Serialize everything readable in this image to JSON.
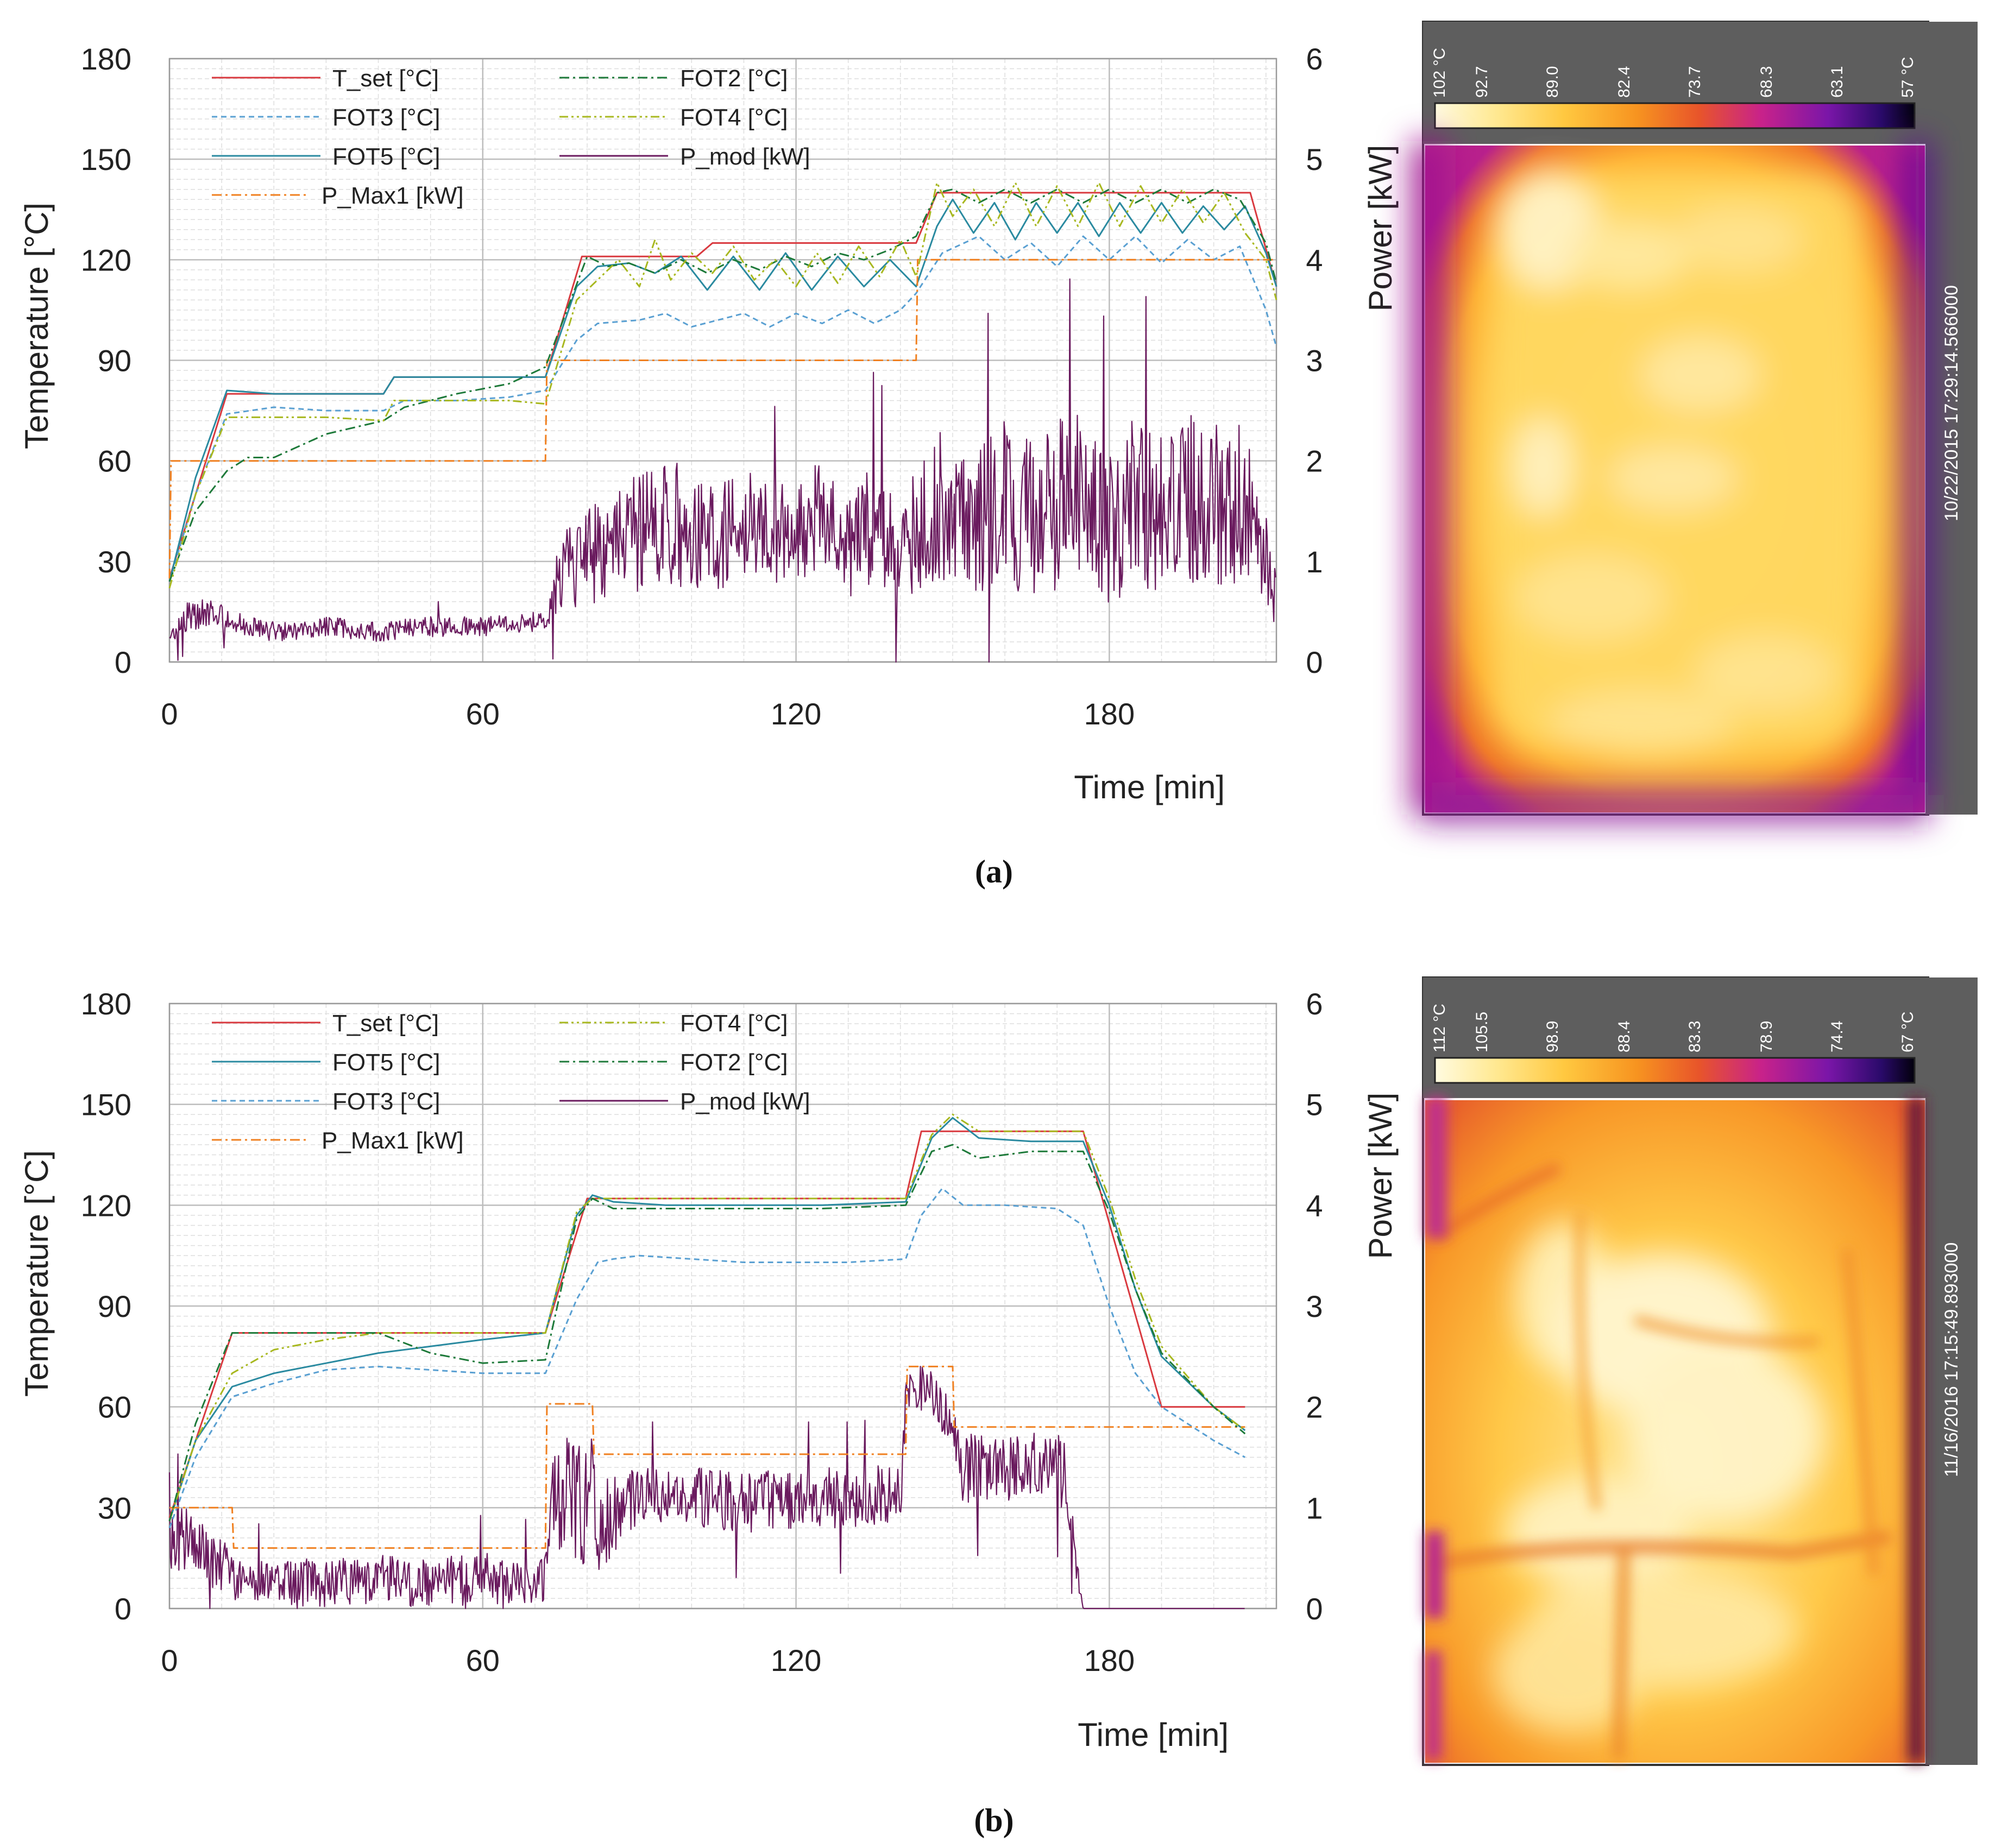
{
  "colors": {
    "t_set": "#d9393f",
    "fot3": "#5aa0d2",
    "fot5": "#2a8aa0",
    "p_max1": "#f08020",
    "fot2": "#1e7a3a",
    "fot4": "#a8b820",
    "p_mod": "#6a1a5e",
    "grid_major": "#bdbdbd",
    "grid_minor": "#dedede",
    "side_bar": "#5e5e5e",
    "thermal": [
      "#fffde8",
      "#fff7a8",
      "#ffe05a",
      "#ffb428",
      "#f57f17",
      "#e5452a",
      "#c5208a",
      "#8a1aa8",
      "#3a0a78",
      "#050014"
    ]
  },
  "chart_data": [
    {
      "type": "line",
      "panel_caption": "(a)",
      "xlabel": "Time [min]",
      "ylabel": "Temperature [°C]",
      "y2label": "Power [kW]",
      "xlim": [
        0,
        212
      ],
      "ylim": [
        0,
        180
      ],
      "y2lim": [
        0,
        6
      ],
      "xticks": [
        "0",
        "60",
        "120",
        "180"
      ],
      "xtick_values": [
        0,
        60,
        120,
        180
      ],
      "yticks": [
        "0",
        "30",
        "60",
        "90",
        "120",
        "150",
        "180"
      ],
      "y2ticks": [
        "0",
        "1",
        "2",
        "3",
        "4",
        "5",
        "6"
      ],
      "grid": true,
      "legend": [
        "T_set   [°C]",
        "FOT2   [°C]",
        "FOT3   [°C]",
        "FOT4   [°C]",
        "FOT5 [°C]",
        "P_mod [kW]",
        "P_Max1 [kW]"
      ],
      "series": [
        {
          "name": "T_set [°C]",
          "key": "t_set",
          "axis": "y",
          "style": "solid",
          "x": [
            0,
            11,
            41,
            43,
            72,
            79,
            101,
            104,
            143,
            147,
            207,
            212
          ],
          "y": [
            25,
            80,
            80,
            85,
            85,
            121,
            121,
            125,
            125,
            140,
            140,
            112
          ]
        },
        {
          "name": "FOT3 [°C]",
          "key": "fot3",
          "axis": "y",
          "style": "dash",
          "x": [
            0,
            5,
            11,
            20,
            30,
            41,
            45,
            55,
            65,
            72,
            78,
            82,
            90,
            95,
            100,
            110,
            115,
            120,
            125,
            130,
            135,
            140,
            143,
            148,
            155,
            160,
            165,
            170,
            175,
            180,
            185,
            190,
            195,
            200,
            205,
            210,
            212
          ],
          "y": [
            24,
            50,
            74,
            76,
            75,
            75,
            78,
            78,
            79,
            81,
            96,
            101,
            102,
            104,
            100,
            104,
            100,
            104,
            101,
            105,
            101,
            105,
            110,
            122,
            127,
            120,
            125,
            118,
            127,
            120,
            127,
            119,
            126,
            120,
            124,
            105,
            94
          ]
        },
        {
          "name": "FOT5 [°C]",
          "key": "fot5",
          "axis": "y",
          "style": "solid",
          "x": [
            0,
            5,
            11,
            20,
            30,
            41,
            43,
            55,
            65,
            72,
            78,
            82,
            88,
            93,
            98,
            103,
            108,
            113,
            118,
            123,
            128,
            133,
            138,
            143,
            147,
            150,
            154,
            158,
            162,
            166,
            170,
            174,
            178,
            182,
            186,
            190,
            194,
            198,
            202,
            206,
            210,
            212
          ],
          "y": [
            24,
            55,
            81,
            80,
            80,
            80,
            85,
            85,
            85,
            85,
            112,
            118,
            119,
            116,
            121,
            111,
            121,
            111,
            122,
            111,
            121,
            112,
            120,
            112,
            130,
            138,
            128,
            137,
            126,
            137,
            128,
            137,
            127,
            137,
            128,
            137,
            128,
            136,
            129,
            136,
            122,
            112
          ]
        },
        {
          "name": "P_Max1 [kW]",
          "key": "p_max1",
          "axis": "y2",
          "style": "dashdot",
          "x": [
            0,
            0.3,
            72,
            72.3,
            143,
            143.3,
            212
          ],
          "y": [
            0.83,
            2,
            2,
            3,
            3,
            4,
            4
          ]
        },
        {
          "name": "FOT2 [°C]",
          "key": "fot2",
          "axis": "y",
          "style": "dashdot",
          "x": [
            0,
            5,
            11,
            15,
            20,
            30,
            41,
            45,
            55,
            65,
            72,
            80,
            84,
            88,
            93,
            98,
            103,
            108,
            113,
            118,
            123,
            128,
            133,
            138,
            143,
            147,
            150,
            155,
            160,
            165,
            170,
            175,
            180,
            185,
            190,
            195,
            200,
            205,
            210,
            212
          ],
          "y": [
            24,
            45,
            57,
            61,
            61,
            68,
            72,
            76,
            80,
            83,
            88,
            121,
            118,
            119,
            116,
            120,
            116,
            120,
            117,
            121,
            118,
            122,
            120,
            123,
            127,
            140,
            141,
            137,
            141,
            137,
            141,
            137,
            141,
            137,
            141,
            137,
            141,
            138,
            125,
            113
          ]
        },
        {
          "name": "FOT4 [°C]",
          "key": "fot4",
          "axis": "y",
          "style": "dashdotdot",
          "x": [
            0,
            5,
            11,
            20,
            30,
            41,
            43,
            55,
            65,
            72,
            78,
            82,
            86,
            90,
            93,
            96,
            100,
            104,
            108,
            112,
            116,
            120,
            124,
            128,
            132,
            136,
            140,
            143,
            147,
            150,
            154,
            158,
            162,
            166,
            170,
            174,
            178,
            182,
            186,
            190,
            194,
            198,
            202,
            206,
            210,
            212
          ],
          "y": [
            22,
            50,
            73,
            73,
            73,
            72,
            78,
            78,
            78,
            77,
            108,
            114,
            120,
            112,
            126,
            114,
            122,
            116,
            124,
            114,
            120,
            112,
            122,
            113,
            124,
            115,
            126,
            115,
            143,
            133,
            141,
            130,
            143,
            130,
            142,
            130,
            143,
            130,
            142,
            131,
            141,
            131,
            140,
            128,
            120,
            108
          ]
        },
        {
          "name": "P_mod [kW]",
          "key": "p_mod",
          "axis": "y2",
          "style": "dot",
          "noisy": true,
          "x": [
            0,
            3,
            8,
            12,
            20,
            30,
            40,
            50,
            60,
            70,
            72,
            75,
            80,
            85,
            90,
            95,
            100,
            105,
            110,
            115,
            120,
            125,
            130,
            135,
            140,
            145,
            150,
            155,
            160,
            165,
            170,
            175,
            180,
            185,
            190,
            195,
            200,
            205,
            210,
            212
          ],
          "y": [
            0.2,
            0.45,
            0.5,
            0.4,
            0.3,
            0.35,
            0.3,
            0.35,
            0.35,
            0.4,
            0.4,
            0.9,
            1.05,
            1.15,
            1.3,
            1.35,
            1.4,
            1.2,
            1.45,
            1.25,
            1.35,
            1.45,
            1.1,
            1.4,
            1.0,
            1.55,
            1.6,
            1.45,
            1.6,
            1.4,
            1.55,
            1.7,
            1.3,
            1.6,
            1.5,
            1.7,
            1.55,
            1.6,
            1.2,
            0.5
          ],
          "spread": [
            0.1,
            0.15,
            0.15,
            0.1,
            0.1,
            0.1,
            0.1,
            0.1,
            0.1,
            0.1,
            0.1,
            0.4,
            0.5,
            0.55,
            0.6,
            0.6,
            0.65,
            0.5,
            0.6,
            0.5,
            0.55,
            0.55,
            0.5,
            0.6,
            0.55,
            0.75,
            0.8,
            0.75,
            0.85,
            0.8,
            0.85,
            0.9,
            0.8,
            0.85,
            0.8,
            0.9,
            0.85,
            0.8,
            0.6,
            0.4
          ]
        }
      ]
    },
    {
      "type": "line",
      "panel_caption": "(b)",
      "xlabel": "Time [min]",
      "ylabel": "Temperature [°C]",
      "y2label": "Power [kW]",
      "xlim": [
        0,
        212
      ],
      "ylim": [
        0,
        180
      ],
      "y2lim": [
        0,
        6
      ],
      "xticks": [
        "0",
        "60",
        "120",
        "180"
      ],
      "xtick_values": [
        0,
        60,
        120,
        180
      ],
      "yticks": [
        "0",
        "30",
        "60",
        "90",
        "120",
        "150",
        "180"
      ],
      "y2ticks": [
        "0",
        "1",
        "2",
        "3",
        "4",
        "5",
        "6"
      ],
      "grid": true,
      "legend": [
        "T_set   [°C]",
        "FOT4   [°C]",
        "FOT5   [°C]",
        "FOT2   [°C]",
        "FOT3 [°C]",
        "P_mod [kW]",
        "P_Max1 [kW]"
      ],
      "series": [
        {
          "name": "T_set [°C]",
          "key": "t_set",
          "axis": "y",
          "style": "solid",
          "x": [
            0,
            12,
            72,
            80,
            141,
            144,
            175,
            190,
            206
          ],
          "y": [
            27,
            82,
            82,
            122,
            122,
            142,
            142,
            60,
            60
          ]
        },
        {
          "name": "FOT5 [°C]",
          "key": "fot5",
          "axis": "y",
          "style": "solid",
          "x": [
            0,
            5,
            12,
            20,
            30,
            40,
            50,
            60,
            72,
            78,
            81,
            85,
            95,
            110,
            125,
            141,
            146,
            150,
            155,
            165,
            175,
            180,
            185,
            190,
            200,
            206
          ],
          "y": [
            26,
            50,
            66,
            70,
            73,
            76,
            78,
            80,
            82,
            117,
            123,
            121,
            120,
            120,
            120,
            121,
            140,
            146,
            140,
            139,
            139,
            120,
            95,
            75,
            60,
            53
          ]
        },
        {
          "name": "FOT3 [°C]",
          "key": "fot3",
          "axis": "y",
          "style": "dash",
          "x": [
            0,
            5,
            12,
            20,
            30,
            40,
            50,
            60,
            72,
            78,
            82,
            85,
            90,
            100,
            110,
            120,
            130,
            141,
            144,
            148,
            152,
            160,
            170,
            175,
            180,
            185,
            190,
            200,
            206
          ],
          "y": [
            24,
            45,
            63,
            67,
            71,
            72,
            71,
            70,
            70,
            92,
            103,
            104,
            105,
            104,
            103,
            103,
            103,
            104,
            117,
            125,
            120,
            120,
            119,
            114,
            90,
            70,
            60,
            50,
            45
          ]
        },
        {
          "name": "P_Max1 [kW]",
          "key": "p_max1",
          "axis": "y2",
          "style": "dashdot",
          "x": [
            0,
            12,
            12.3,
            72,
            72.3,
            81,
            81.3,
            141,
            141.3,
            150,
            150.3,
            206
          ],
          "y": [
            1.0,
            1.0,
            0.6,
            0.6,
            2.03,
            2.03,
            1.53,
            1.53,
            2.4,
            2.4,
            1.8,
            1.8
          ]
        },
        {
          "name": "FOT4 [°C]",
          "key": "fot4",
          "axis": "y",
          "style": "dashdotdot",
          "x": [
            0,
            5,
            12,
            20,
            30,
            40,
            50,
            60,
            72,
            78,
            81,
            90,
            110,
            125,
            141,
            146,
            150,
            155,
            165,
            175,
            180,
            185,
            190,
            200,
            206
          ],
          "y": [
            26,
            50,
            70,
            77,
            80,
            82,
            82,
            82,
            82,
            118,
            122,
            122,
            122,
            122,
            122,
            141,
            147,
            142,
            142,
            142,
            122,
            98,
            78,
            60,
            53
          ]
        },
        {
          "name": "FOT2 [°C]",
          "key": "fot2",
          "axis": "y",
          "style": "dashdot",
          "x": [
            0,
            5,
            12,
            20,
            30,
            40,
            50,
            60,
            72,
            78,
            81,
            85,
            95,
            110,
            125,
            141,
            146,
            150,
            155,
            165,
            175,
            180,
            185,
            190,
            200,
            206
          ],
          "y": [
            26,
            55,
            82,
            82,
            82,
            82,
            76,
            73,
            74,
            116,
            122,
            119,
            119,
            119,
            119,
            120,
            136,
            138,
            134,
            136,
            136,
            118,
            95,
            76,
            60,
            52
          ]
        },
        {
          "name": "P_mod [kW]",
          "key": "p_mod",
          "axis": "y2",
          "style": "dot",
          "noisy": true,
          "x": [
            0,
            2,
            6,
            12,
            14,
            20,
            30,
            40,
            50,
            60,
            70,
            72,
            74,
            78,
            81,
            82,
            90,
            100,
            110,
            120,
            130,
            140,
            141,
            144,
            148,
            150,
            152,
            160,
            170,
            172,
            174,
            175,
            180,
            190,
            200,
            206
          ],
          "y": [
            0.6,
            0.7,
            0.55,
            0.4,
            0.25,
            0.3,
            0.25,
            0.3,
            0.25,
            0.3,
            0.25,
            0.3,
            1.2,
            1.0,
            1.1,
            0.8,
            1.1,
            1.1,
            1.05,
            1.1,
            1.1,
            1.15,
            2.1,
            2.2,
            2.0,
            1.8,
            1.4,
            1.4,
            1.4,
            1.3,
            0.3,
            0.0,
            0.0,
            0.0,
            0.0,
            0.0
          ],
          "spread": [
            0.3,
            0.35,
            0.35,
            0.3,
            0.2,
            0.25,
            0.25,
            0.25,
            0.25,
            0.25,
            0.25,
            0.25,
            0.6,
            0.6,
            0.6,
            0.45,
            0.3,
            0.3,
            0.3,
            0.3,
            0.3,
            0.3,
            0.25,
            0.25,
            0.25,
            0.2,
            0.35,
            0.35,
            0.35,
            0.4,
            0.15,
            0.0,
            0.0,
            0.0,
            0.0,
            0.0
          ]
        }
      ]
    }
  ],
  "thermal_images": [
    {
      "scale_labels": [
        "102 °C",
        "92.7",
        "89.0",
        "82.4",
        "73.7",
        "68.3",
        "63.1",
        "57 °C"
      ],
      "timestamp": "10/22/2015 17:29:14.566000"
    },
    {
      "scale_labels": [
        "112 °C",
        "105.5",
        "98.9",
        "88.4",
        "83.3",
        "78.9",
        "74.4",
        "67 °C"
      ],
      "timestamp": "11/16/2016 17:15:49.893000"
    }
  ]
}
